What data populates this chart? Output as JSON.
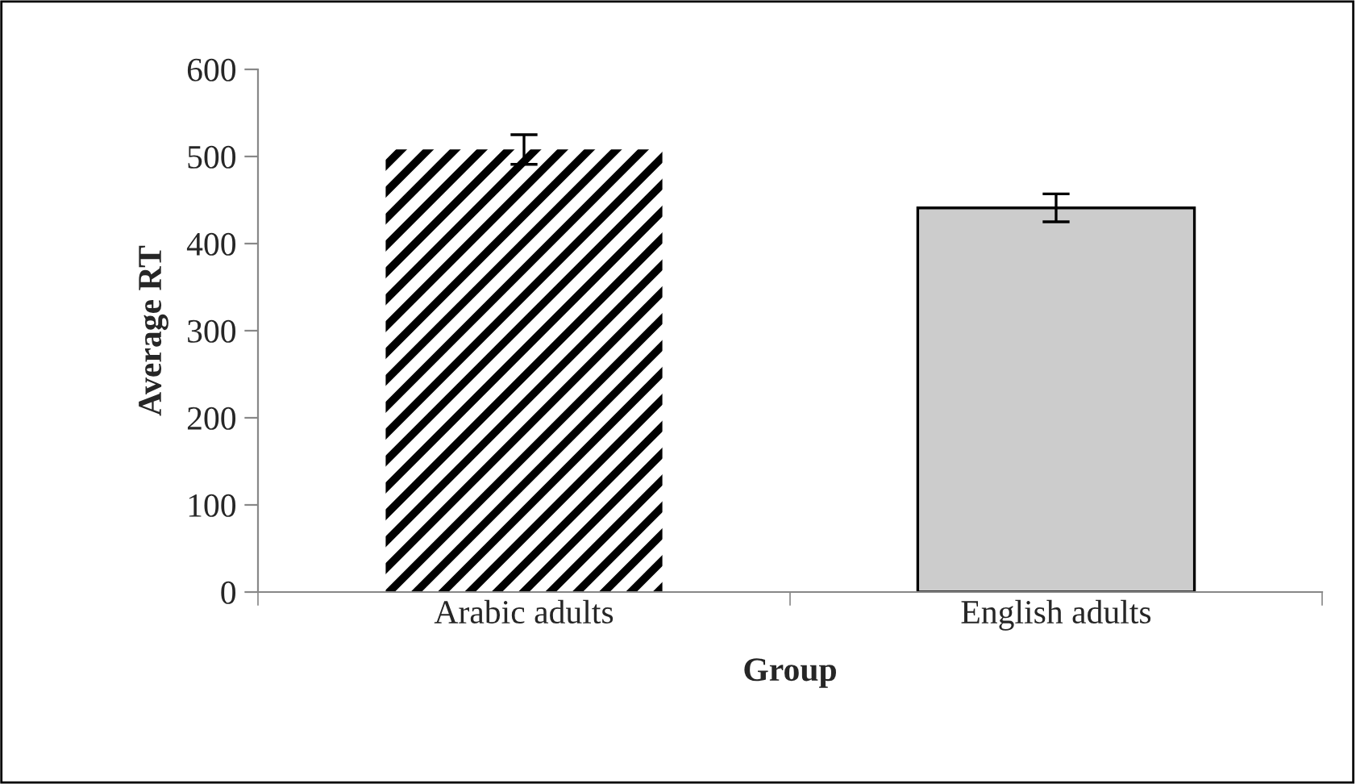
{
  "chart_data": {
    "type": "bar",
    "xlabel": "Group",
    "ylabel": "Average RT",
    "categories": [
      "Arabic adults",
      "English adults"
    ],
    "values": [
      508,
      441
    ],
    "errors": [
      17,
      16
    ],
    "colors": [
      "#000000",
      "#cccccc"
    ],
    "ylim": [
      0,
      600
    ],
    "yticks": [
      0,
      100,
      200,
      300,
      400,
      500,
      600
    ],
    "grid": false,
    "legend": false
  }
}
